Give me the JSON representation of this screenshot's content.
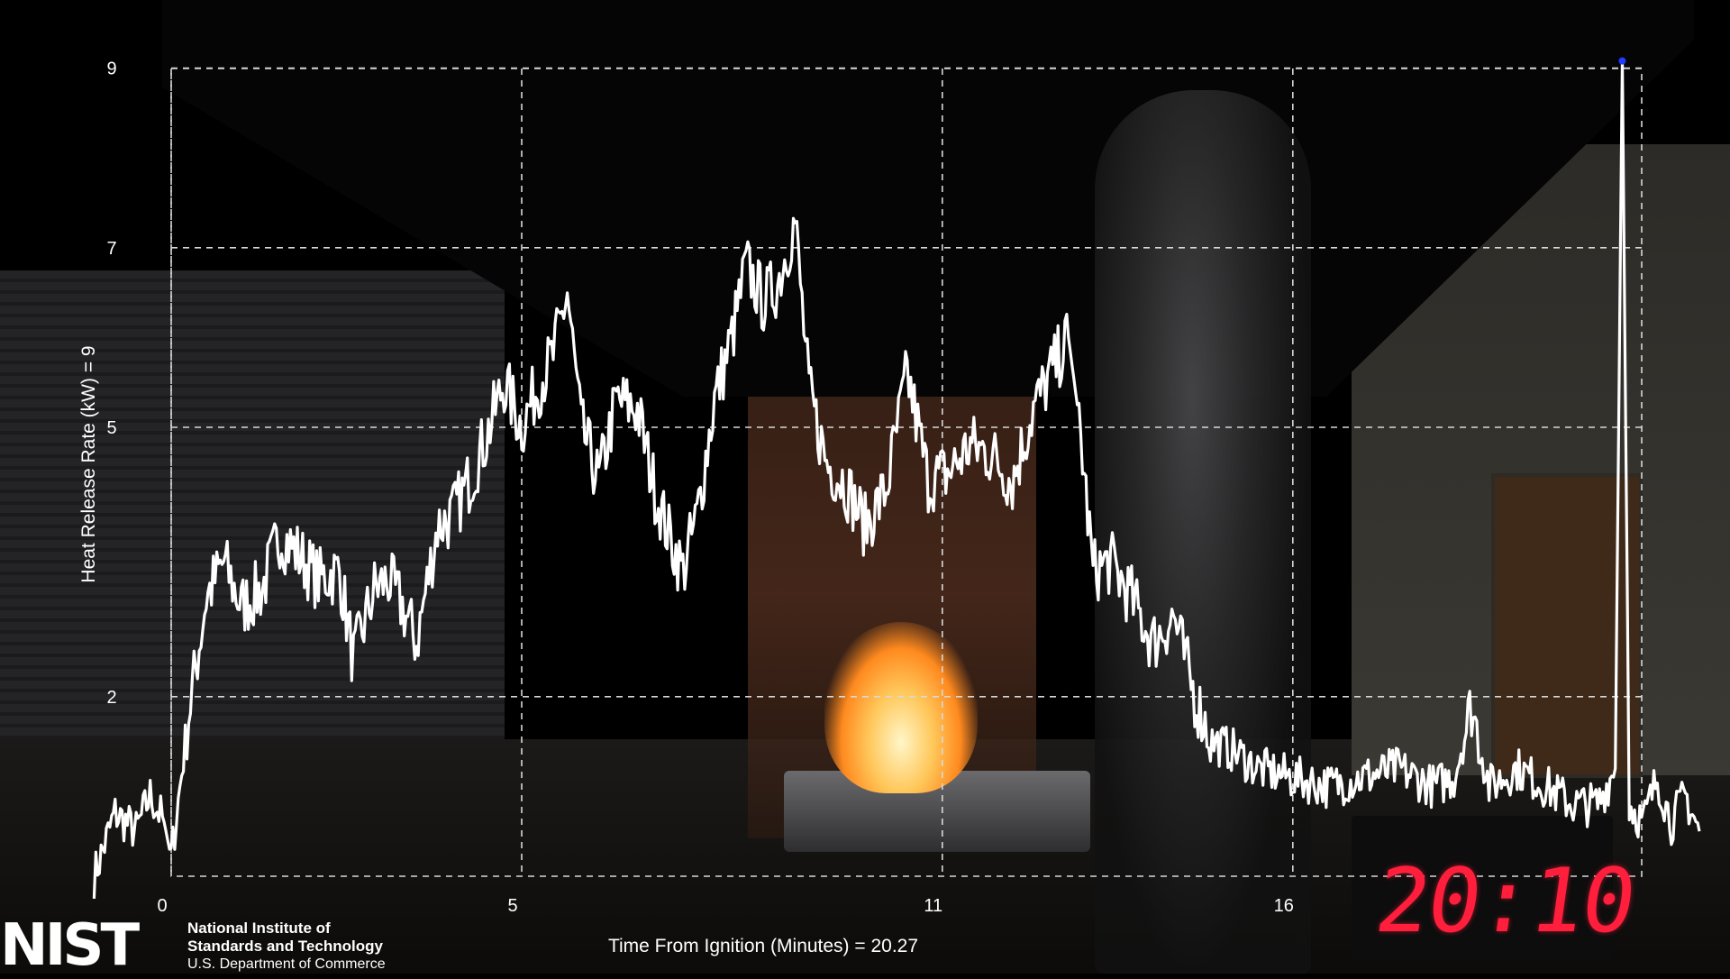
{
  "chart_data": {
    "type": "line",
    "xlabel": "Time From Ignition (Minutes) = 20.27",
    "ylabel": "Heat Release Rate (kW) = 9",
    "x_ticks": [
      0,
      5,
      11,
      16
    ],
    "y_ticks": [
      2,
      5,
      7,
      9
    ],
    "xlim": [
      0,
      20.7
    ],
    "ylim": [
      0,
      9
    ],
    "grid": true,
    "line_color": "#ffffff",
    "marker_color": "#1f3cff",
    "series": [
      {
        "values": [
          [
            -1.1,
            0.0
          ],
          [
            -0.8,
            0.7
          ],
          [
            -0.5,
            0.5
          ],
          [
            -0.3,
            0.9
          ],
          [
            -0.1,
            0.6
          ],
          [
            0.0,
            0.2
          ],
          [
            0.25,
            1.8
          ],
          [
            0.5,
            3.1
          ],
          [
            0.75,
            3.5
          ],
          [
            1.0,
            3.0
          ],
          [
            1.3,
            3.2
          ],
          [
            1.55,
            3.8
          ],
          [
            1.8,
            3.6
          ],
          [
            2.1,
            3.3
          ],
          [
            2.4,
            3.4
          ],
          [
            2.6,
            2.4
          ],
          [
            2.9,
            3.2
          ],
          [
            3.1,
            3.3
          ],
          [
            3.3,
            3.0
          ],
          [
            3.5,
            2.6
          ],
          [
            3.8,
            3.9
          ],
          [
            4.0,
            4.0
          ],
          [
            4.25,
            4.4
          ],
          [
            4.5,
            4.9
          ],
          [
            4.75,
            5.5
          ],
          [
            5.0,
            5.0
          ],
          [
            5.2,
            5.4
          ],
          [
            5.45,
            5.8
          ],
          [
            5.65,
            6.5
          ],
          [
            5.85,
            5.0
          ],
          [
            6.1,
            4.4
          ],
          [
            6.35,
            5.3
          ],
          [
            6.65,
            5.2
          ],
          [
            6.9,
            4.3
          ],
          [
            7.1,
            3.8
          ],
          [
            7.3,
            3.4
          ],
          [
            7.5,
            4.0
          ],
          [
            7.75,
            5.3
          ],
          [
            8.0,
            6.0
          ],
          [
            8.2,
            6.8
          ],
          [
            8.45,
            6.4
          ],
          [
            8.65,
            6.6
          ],
          [
            8.9,
            7.3
          ],
          [
            9.1,
            5.4
          ],
          [
            9.35,
            4.6
          ],
          [
            9.6,
            4.4
          ],
          [
            9.9,
            3.9
          ],
          [
            10.2,
            4.3
          ],
          [
            10.5,
            5.6
          ],
          [
            10.8,
            4.4
          ],
          [
            11.1,
            4.5
          ],
          [
            11.4,
            4.8
          ],
          [
            11.7,
            4.7
          ],
          [
            12.0,
            4.4
          ],
          [
            12.3,
            5.2
          ],
          [
            12.55,
            5.6
          ],
          [
            12.8,
            6.0
          ],
          [
            12.95,
            5.1
          ],
          [
            13.15,
            3.4
          ],
          [
            13.4,
            3.5
          ],
          [
            13.7,
            3.1
          ],
          [
            14.0,
            2.6
          ],
          [
            14.3,
            2.9
          ],
          [
            14.6,
            2.0
          ],
          [
            14.85,
            1.5
          ],
          [
            15.15,
            1.4
          ],
          [
            15.5,
            1.2
          ],
          [
            16.0,
            1.1
          ],
          [
            16.5,
            1.0
          ],
          [
            17.0,
            1.1
          ],
          [
            17.5,
            1.2
          ],
          [
            18.0,
            1.0
          ],
          [
            18.3,
            1.1
          ],
          [
            18.55,
            1.9
          ],
          [
            18.8,
            1.0
          ],
          [
            19.2,
            1.2
          ],
          [
            19.6,
            1.0
          ],
          [
            20.0,
            0.8
          ],
          [
            20.35,
            0.8
          ],
          [
            20.6,
            1.2
          ],
          [
            20.7,
            9.1
          ],
          [
            20.8,
            0.8
          ],
          [
            21.0,
            0.6
          ],
          [
            21.2,
            1.1
          ],
          [
            21.4,
            0.6
          ],
          [
            21.6,
            0.9
          ],
          [
            21.8,
            0.5
          ]
        ]
      }
    ]
  },
  "clock": {
    "display": "20:10"
  },
  "logo": {
    "mark": "NIST",
    "line1": "National Institute of",
    "line2": "Standards and Technology",
    "line3": "U.S. Department of Commerce"
  }
}
